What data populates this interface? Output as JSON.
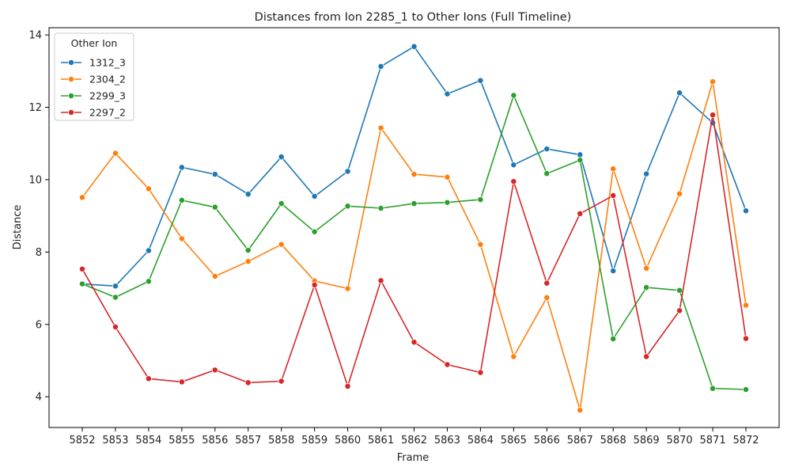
{
  "chart_data": {
    "type": "line",
    "title": "Distances from Ion 2285_1 to Other Ions (Full Timeline)",
    "xlabel": "Frame",
    "ylabel": "Distance",
    "ylim": [
      3.15,
      14.2
    ],
    "yticks": [
      4,
      6,
      8,
      10,
      12,
      14
    ],
    "grid": false,
    "legend": {
      "title": "Other Ion",
      "placement": "top-left"
    },
    "x": [
      5852,
      5853,
      5854,
      5855,
      5856,
      5857,
      5858,
      5859,
      5860,
      5861,
      5862,
      5863,
      5864,
      5865,
      5866,
      5867,
      5868,
      5869,
      5870,
      5871,
      5872
    ],
    "series": [
      {
        "name": "1312_3",
        "color": "#1f77b4",
        "values": [
          7.12,
          7.06,
          8.04,
          10.34,
          10.15,
          9.6,
          10.63,
          9.54,
          10.23,
          13.13,
          13.68,
          12.37,
          12.74,
          10.41,
          10.85,
          10.69,
          7.48,
          10.16,
          12.4,
          11.57,
          9.14
        ]
      },
      {
        "name": "2304_2",
        "color": "#ff7f0e",
        "values": [
          9.51,
          10.73,
          9.75,
          8.37,
          7.33,
          7.74,
          8.21,
          7.2,
          6.99,
          11.43,
          10.15,
          10.07,
          8.21,
          5.11,
          6.74,
          3.63,
          10.3,
          7.55,
          9.61,
          12.71,
          6.53
        ]
      },
      {
        "name": "2299_3",
        "color": "#2ca02c",
        "values": [
          7.12,
          6.75,
          7.19,
          9.43,
          9.24,
          8.05,
          9.34,
          8.56,
          9.27,
          9.21,
          9.34,
          9.37,
          9.45,
          12.33,
          10.17,
          10.54,
          5.6,
          7.02,
          6.94,
          4.23,
          4.2
        ]
      },
      {
        "name": "2297_2",
        "color": "#d62728",
        "values": [
          7.53,
          5.93,
          4.5,
          4.41,
          4.74,
          4.39,
          4.43,
          7.09,
          4.29,
          7.21,
          5.51,
          4.89,
          4.67,
          9.95,
          7.14,
          9.06,
          9.56,
          5.11,
          6.38,
          11.79,
          5.61
        ]
      }
    ]
  }
}
